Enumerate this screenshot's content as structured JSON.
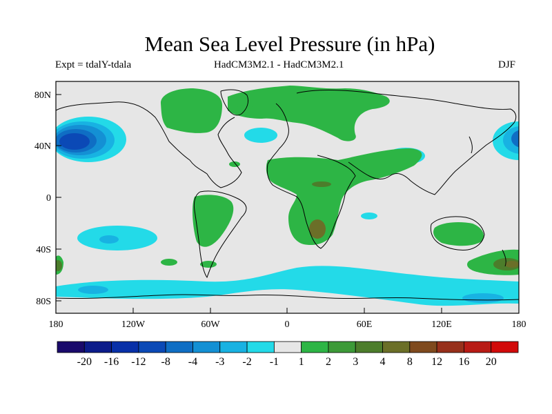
{
  "title": "Mean Sea Level Pressure (in hPa)",
  "subtitle_left": "Expt = tdalY-tdala",
  "subtitle_center": "HadCM3M2.1 - HadCM3M2.1",
  "subtitle_right": "DJF",
  "chart_data": {
    "type": "heatmap",
    "projection": "equirectangular",
    "x_ticks": [
      "180",
      "120W",
      "60W",
      "0",
      "60E",
      "120E",
      "180"
    ],
    "y_ticks": [
      "80N",
      "40N",
      "0",
      "40S",
      "80S"
    ],
    "lon_range": [
      -180,
      180
    ],
    "lat_range": [
      -90,
      90
    ],
    "colorbar_labels": [
      "-20",
      "-16",
      "-12",
      "-8",
      "-4",
      "-3",
      "-2",
      "-1",
      "1",
      "2",
      "3",
      "4",
      "8",
      "12",
      "16",
      "20"
    ],
    "colorbar_colors": [
      "#1a0a6b",
      "#0c1c8a",
      "#0830a8",
      "#0b49b6",
      "#0f6ec4",
      "#1490d4",
      "#18b2e2",
      "#23dae8",
      "#e6e6e6",
      "#2db545",
      "#3d9a38",
      "#4c7d2b",
      "#6b6f28",
      "#7f4a1e",
      "#97301b",
      "#b81b15",
      "#d20a0a"
    ],
    "regions": [
      {
        "level": "-2 to -1",
        "lon": [
          -180,
          -150
        ],
        "lat": [
          35,
          55
        ]
      },
      {
        "level": "-12 to -8",
        "lon": [
          -180,
          -160
        ],
        "lat": [
          40,
          50
        ]
      },
      {
        "level": "-2 to -1",
        "lon": [
          160,
          180
        ],
        "lat": [
          35,
          55
        ]
      },
      {
        "level": "-2 to -1",
        "lon": [
          85,
          105
        ],
        "lat": [
          26,
          36
        ]
      },
      {
        "level": "-2 to -1",
        "lon": [
          -30,
          -10
        ],
        "lat": [
          38,
          47
        ]
      },
      {
        "level": "-2 to -1",
        "lon": [
          -170,
          -120
        ],
        "lat": [
          -50,
          -22
        ]
      },
      {
        "level": "-2 to -1",
        "lon": [
          -180,
          180
        ],
        "lat": [
          -90,
          -55
        ]
      },
      {
        "level": "1 to 2",
        "lon": [
          -100,
          -50
        ],
        "lat": [
          50,
          80
        ]
      },
      {
        "level": "1 to 2",
        "lon": [
          0,
          110
        ],
        "lat": [
          50,
          80
        ]
      },
      {
        "level": "1 to 2",
        "lon": [
          -10,
          60
        ],
        "lat": [
          0,
          35
        ]
      },
      {
        "level": "1 to 2",
        "lon": [
          0,
          50
        ],
        "lat": [
          -40,
          0
        ]
      },
      {
        "level": "3 to 4",
        "lon": [
          15,
          30
        ],
        "lat": [
          -35,
          -20
        ]
      },
      {
        "level": "1 to 2",
        "lon": [
          -70,
          -40
        ],
        "lat": [
          -25,
          0
        ]
      },
      {
        "level": "1 to 2",
        "lon": [
          115,
          145
        ],
        "lat": [
          -35,
          -18
        ]
      },
      {
        "level": "1 to 2",
        "lon": [
          140,
          180
        ],
        "lat": [
          -65,
          -35
        ]
      },
      {
        "level": "3 to 4",
        "lon": [
          160,
          180
        ],
        "lat": [
          -58,
          -45
        ]
      },
      {
        "level": "3 to 4",
        "lon": [
          -180,
          -175
        ],
        "lat": [
          -58,
          -45
        ]
      }
    ]
  }
}
